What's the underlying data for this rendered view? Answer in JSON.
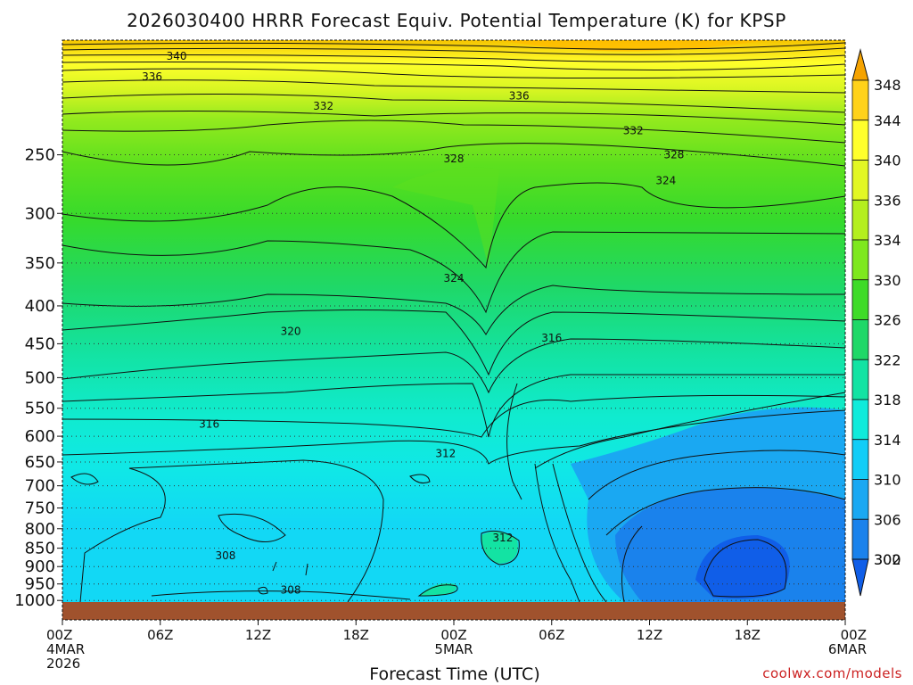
{
  "chart_data": {
    "type": "contour",
    "title": "2026030400 HRRR Forecast Equiv. Potential Temperature (K) for KPSP",
    "xlabel": "Forecast Time (UTC)",
    "ylabel": "",
    "credit": "coolwx.com/models",
    "x_ticks": [
      {
        "hours": 0,
        "lines": [
          "00Z",
          "4MAR",
          "2026"
        ]
      },
      {
        "hours": 6,
        "lines": [
          "06Z"
        ]
      },
      {
        "hours": 12,
        "lines": [
          "12Z"
        ]
      },
      {
        "hours": 18,
        "lines": [
          "18Z"
        ]
      },
      {
        "hours": 24,
        "lines": [
          "00Z",
          "5MAR"
        ]
      },
      {
        "hours": 30,
        "lines": [
          "06Z"
        ]
      },
      {
        "hours": 36,
        "lines": [
          "12Z"
        ]
      },
      {
        "hours": 42,
        "lines": [
          "18Z"
        ]
      },
      {
        "hours": 48,
        "lines": [
          "00Z",
          "6MAR"
        ]
      }
    ],
    "xlim": [
      0,
      48
    ],
    "y_axis": "pressure (hPa), log scale, inverted",
    "y_ticks": [
      250,
      300,
      350,
      400,
      450,
      500,
      550,
      600,
      650,
      700,
      750,
      800,
      850,
      900,
      950,
      1000
    ],
    "ylim": [
      1030,
      170
    ],
    "colorbar": {
      "levels": [
        348,
        344,
        340,
        336,
        334,
        330,
        326,
        322,
        318,
        314,
        310,
        306,
        302,
        300
      ],
      "colors": [
        "#f5a300",
        "#ffd21a",
        "#ffff2b",
        "#e2f724",
        "#b4ef1e",
        "#7ee81e",
        "#3fdb28",
        "#1fd868",
        "#13e3a3",
        "#10ebdb",
        "#12cdf7",
        "#1aa8f2",
        "#1a82ec",
        "#105ee8"
      ]
    },
    "contour_labels": [
      {
        "text": "340",
        "hours": 7.0,
        "p": 184
      },
      {
        "text": "336",
        "hours": 5.5,
        "p": 196
      },
      {
        "text": "336",
        "hours": 28.0,
        "p": 208
      },
      {
        "text": "332",
        "hours": 16.0,
        "p": 215
      },
      {
        "text": "332",
        "hours": 35.0,
        "p": 232
      },
      {
        "text": "328",
        "hours": 24.0,
        "p": 253
      },
      {
        "text": "328",
        "hours": 37.5,
        "p": 250
      },
      {
        "text": "324",
        "hours": 37.0,
        "p": 271
      },
      {
        "text": "324",
        "hours": 24.0,
        "p": 367
      },
      {
        "text": "320",
        "hours": 14.0,
        "p": 433
      },
      {
        "text": "316",
        "hours": 30.0,
        "p": 442
      },
      {
        "text": "316",
        "hours": 9.0,
        "p": 578
      },
      {
        "text": "312",
        "hours": 23.5,
        "p": 633
      },
      {
        "text": "312",
        "hours": 27.0,
        "p": 823
      },
      {
        "text": "308",
        "hours": 10.0,
        "p": 870
      },
      {
        "text": "308",
        "hours": 14.0,
        "p": 968
      }
    ],
    "grid": "dotted horizontal lines at pressure ticks",
    "ground": "brown band below 1000 hPa"
  }
}
